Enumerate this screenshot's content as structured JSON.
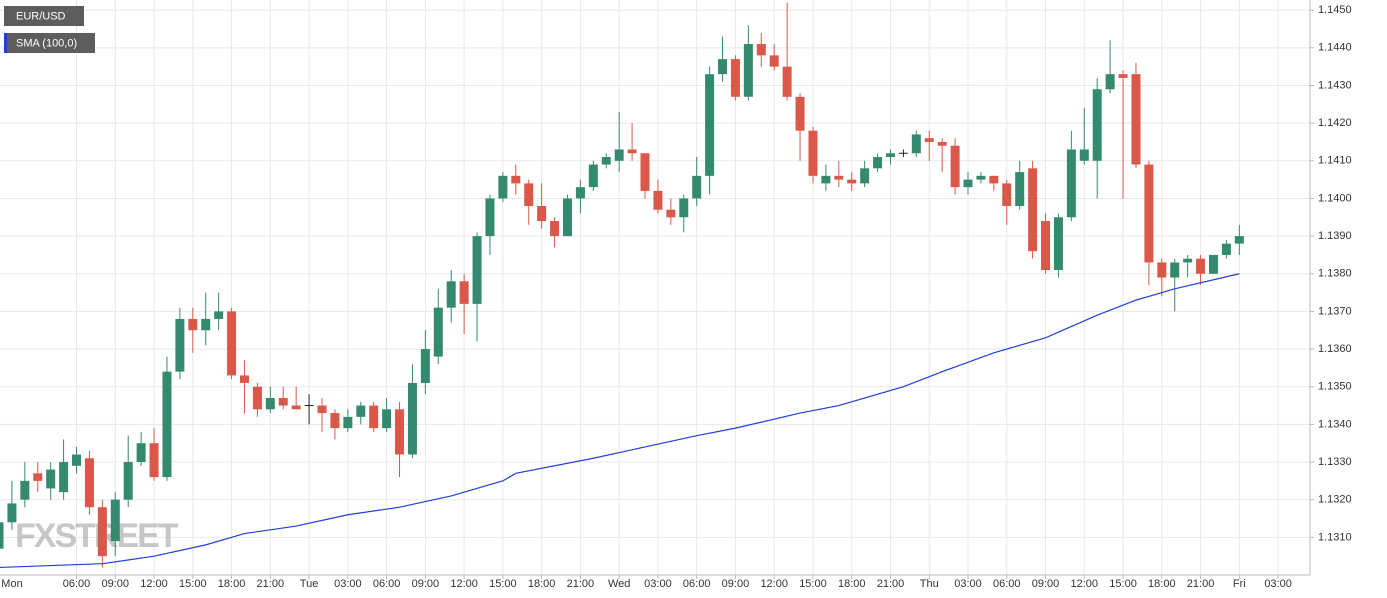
{
  "chart_data": {
    "type": "candlestick",
    "name": "EUR/USD",
    "watermark": "FXSTREET",
    "up_color": "#348a6f",
    "down_color": "#d9584a",
    "flat_color": "#222222",
    "x": [
      0,
      1,
      2,
      3,
      4,
      5,
      6,
      7,
      8,
      9,
      10,
      11,
      12,
      13,
      14,
      15,
      16,
      17,
      18,
      19,
      20,
      21,
      22,
      23,
      24,
      25,
      26,
      27,
      28,
      29,
      30,
      31,
      32,
      33,
      34,
      35,
      36,
      37,
      38,
      39,
      40,
      41,
      42,
      43,
      44,
      45,
      46,
      47,
      48,
      49,
      50,
      51,
      52,
      53,
      54,
      55,
      56,
      57,
      58,
      59,
      60,
      61,
      62,
      63,
      64,
      65,
      66,
      67,
      68,
      69,
      70,
      71,
      72,
      73,
      74,
      75,
      76,
      77,
      78,
      79,
      80,
      81,
      82,
      83,
      84,
      85,
      86,
      87,
      88,
      89,
      90,
      91,
      92,
      93,
      94,
      95,
      96
    ],
    "open": [
      1.1307,
      1.1314,
      1.132,
      1.1327,
      1.1323,
      1.1322,
      1.1329,
      1.1331,
      1.1318,
      1.1309,
      1.132,
      1.133,
      1.1335,
      1.1326,
      1.1354,
      1.1368,
      1.1365,
      1.1368,
      1.137,
      1.1353,
      1.135,
      1.1344,
      1.1347,
      1.1345,
      1.1345,
      1.1345,
      1.1343,
      1.1339,
      1.1342,
      1.1345,
      1.1339,
      1.1344,
      1.1332,
      1.1351,
      1.1358,
      1.1371,
      1.1378,
      1.1372,
      1.139,
      1.14,
      1.1406,
      1.1404,
      1.1398,
      1.1394,
      1.139,
      1.14,
      1.1403,
      1.1409,
      1.141,
      1.1413,
      1.1412,
      1.1402,
      1.1397,
      1.1395,
      1.14,
      1.1406,
      1.1433,
      1.1437,
      1.1427,
      1.1441,
      1.1438,
      1.1435,
      1.1427,
      1.1418,
      1.1404,
      1.1406,
      1.1405,
      1.1404,
      1.1408,
      1.1411,
      1.1412,
      1.1412,
      1.1416,
      1.1415,
      1.1414,
      1.1403,
      1.1405,
      1.1406,
      1.1404,
      1.1398,
      1.1408,
      1.1394,
      1.1381,
      1.1395,
      1.141,
      1.141,
      1.1429,
      1.1433,
      1.1433,
      1.1409,
      1.1383,
      1.1379,
      1.1383,
      1.1384,
      1.138,
      1.1385,
      1.1388
    ],
    "high": [
      1.1316,
      1.1325,
      1.133,
      1.133,
      1.133,
      1.1336,
      1.1334,
      1.1333,
      1.132,
      1.1322,
      1.1337,
      1.1338,
      1.1339,
      1.1358,
      1.1371,
      1.1371,
      1.1375,
      1.1375,
      1.1371,
      1.1357,
      1.1351,
      1.135,
      1.135,
      1.135,
      1.1348,
      1.1347,
      1.1344,
      1.1344,
      1.1346,
      1.1346,
      1.1347,
      1.1346,
      1.1356,
      1.1365,
      1.1376,
      1.1381,
      1.138,
      1.1391,
      1.1401,
      1.1407,
      1.1409,
      1.1405,
      1.1404,
      1.1395,
      1.1401,
      1.1405,
      1.141,
      1.1412,
      1.1423,
      1.142,
      1.1412,
      1.1405,
      1.14,
      1.1401,
      1.1411,
      1.1435,
      1.1443,
      1.1438,
      1.1446,
      1.1444,
      1.1441,
      1.1452,
      1.1428,
      1.1419,
      1.1409,
      1.141,
      1.1407,
      1.141,
      1.1412,
      1.1413,
      1.1413,
      1.1418,
      1.1418,
      1.1416,
      1.1416,
      1.1407,
      1.1407,
      1.1406,
      1.1405,
      1.141,
      1.141,
      1.1396,
      1.1396,
      1.1418,
      1.1424,
      1.1432,
      1.1442,
      1.1434,
      1.1436,
      1.141,
      1.1384,
      1.1384,
      1.1385,
      1.1385,
      1.1385,
      1.1389,
      1.1393
    ],
    "low": [
      1.1303,
      1.1312,
      1.1318,
      1.1322,
      1.132,
      1.132,
      1.1327,
      1.1316,
      1.1302,
      1.1305,
      1.1318,
      1.1329,
      1.1325,
      1.1325,
      1.1352,
      1.1359,
      1.1361,
      1.1365,
      1.1352,
      1.1343,
      1.1342,
      1.1343,
      1.1344,
      1.1344,
      1.134,
      1.1338,
      1.1336,
      1.1338,
      1.134,
      1.1338,
      1.1338,
      1.1326,
      1.1331,
      1.1348,
      1.1356,
      1.1367,
      1.1364,
      1.1362,
      1.1385,
      1.1399,
      1.1401,
      1.1393,
      1.1392,
      1.1387,
      1.139,
      1.1396,
      1.1402,
      1.1408,
      1.1407,
      1.141,
      1.14,
      1.1396,
      1.1393,
      1.1391,
      1.1398,
      1.1401,
      1.1431,
      1.1426,
      1.1426,
      1.1435,
      1.1434,
      1.1426,
      1.141,
      1.1404,
      1.1402,
      1.1403,
      1.1402,
      1.1403,
      1.1407,
      1.1409,
      1.1411,
      1.1411,
      1.141,
      1.1407,
      1.1401,
      1.1401,
      1.1404,
      1.1402,
      1.1393,
      1.1397,
      1.1384,
      1.138,
      1.1379,
      1.1394,
      1.1409,
      1.14,
      1.1428,
      1.14,
      1.1408,
      1.1377,
      1.1374,
      1.137,
      1.1379,
      1.1377,
      1.138,
      1.1384,
      1.1385
    ],
    "close": [
      1.1314,
      1.1319,
      1.1325,
      1.1325,
      1.1328,
      1.133,
      1.1332,
      1.1318,
      1.1305,
      1.132,
      1.133,
      1.1335,
      1.1326,
      1.1354,
      1.1368,
      1.1365,
      1.1368,
      1.137,
      1.1353,
      1.1351,
      1.1344,
      1.1347,
      1.1345,
      1.1344,
      1.1345,
      1.1343,
      1.1339,
      1.1342,
      1.1345,
      1.1339,
      1.1344,
      1.1332,
      1.1351,
      1.136,
      1.1371,
      1.1378,
      1.1372,
      1.139,
      1.14,
      1.1406,
      1.1404,
      1.1398,
      1.1394,
      1.139,
      1.14,
      1.1403,
      1.1409,
      1.1411,
      1.1413,
      1.1412,
      1.1402,
      1.1397,
      1.1395,
      1.14,
      1.1406,
      1.1433,
      1.1437,
      1.1427,
      1.1441,
      1.1438,
      1.1435,
      1.1427,
      1.1418,
      1.1406,
      1.1406,
      1.1405,
      1.1404,
      1.1408,
      1.1411,
      1.1412,
      1.1412,
      1.1417,
      1.1415,
      1.1414,
      1.1403,
      1.1405,
      1.1406,
      1.1404,
      1.1398,
      1.1407,
      1.1386,
      1.1381,
      1.1395,
      1.1413,
      1.1413,
      1.1429,
      1.1433,
      1.1432,
      1.1409,
      1.1383,
      1.1379,
      1.1383,
      1.1384,
      1.138,
      1.1385,
      1.1388,
      1.139
    ],
    "overlays": [
      {
        "type": "line",
        "name": "SMA (100,0)",
        "color": "#1f3fd6",
        "x": [
          0,
          8,
          12,
          16,
          19,
          23,
          27,
          31,
          35,
          39,
          40,
          46,
          50,
          54,
          57,
          62,
          65,
          70,
          73,
          77,
          81,
          85,
          88,
          91,
          96
        ],
        "values": [
          1.1302,
          1.1303,
          1.1305,
          1.1308,
          1.1311,
          1.1313,
          1.1316,
          1.1318,
          1.1321,
          1.1325,
          1.1327,
          1.1331,
          1.1334,
          1.1337,
          1.1339,
          1.1343,
          1.1345,
          1.135,
          1.1354,
          1.1359,
          1.1363,
          1.1369,
          1.1373,
          1.1376,
          1.138
        ]
      }
    ],
    "xlim": [
      0.077,
      101.47
    ],
    "xticks": [
      {
        "value": 0,
        "label": "Mon"
      },
      {
        "value": 6,
        "label": "06:00"
      },
      {
        "value": 9,
        "label": "09:00"
      },
      {
        "value": 12,
        "label": "12:00"
      },
      {
        "value": 15,
        "label": "15:00"
      },
      {
        "value": 18,
        "label": "18:00"
      },
      {
        "value": 21,
        "label": "21:00"
      },
      {
        "value": 24,
        "label": "Tue"
      },
      {
        "value": 27,
        "label": "03:00"
      },
      {
        "value": 30,
        "label": "06:00"
      },
      {
        "value": 33,
        "label": "09:00"
      },
      {
        "value": 36,
        "label": "12:00"
      },
      {
        "value": 39,
        "label": "15:00"
      },
      {
        "value": 42,
        "label": "18:00"
      },
      {
        "value": 45,
        "label": "21:00"
      },
      {
        "value": 48,
        "label": "Wed"
      },
      {
        "value": 51,
        "label": "03:00"
      },
      {
        "value": 54,
        "label": "06:00"
      },
      {
        "value": 57,
        "label": "09:00"
      },
      {
        "value": 60,
        "label": "12:00"
      },
      {
        "value": 63,
        "label": "15:00"
      },
      {
        "value": 66,
        "label": "18:00"
      },
      {
        "value": 69,
        "label": "21:00"
      },
      {
        "value": 72,
        "label": "Thu"
      },
      {
        "value": 75,
        "label": "03:00"
      },
      {
        "value": 78,
        "label": "06:00"
      },
      {
        "value": 81,
        "label": "09:00"
      },
      {
        "value": 84,
        "label": "12:00"
      },
      {
        "value": 87,
        "label": "15:00"
      },
      {
        "value": 90,
        "label": "18:00"
      },
      {
        "value": 93,
        "label": "21:00"
      },
      {
        "value": 96,
        "label": "Fri"
      },
      {
        "value": 99,
        "label": "03:00"
      }
    ],
    "ylim": [
      1.13,
      1.14527
    ],
    "yticks": [
      {
        "value": 1.131,
        "label": "1.1310"
      },
      {
        "value": 1.132,
        "label": "1.1320"
      },
      {
        "value": 1.133,
        "label": "1.1330"
      },
      {
        "value": 1.134,
        "label": "1.1340"
      },
      {
        "value": 1.135,
        "label": "1.1350"
      },
      {
        "value": 1.136,
        "label": "1.1360"
      },
      {
        "value": 1.137,
        "label": "1.1370"
      },
      {
        "value": 1.138,
        "label": "1.1380"
      },
      {
        "value": 1.139,
        "label": "1.1390"
      },
      {
        "value": 1.14,
        "label": "1.1400"
      },
      {
        "value": 1.141,
        "label": "1.1410"
      },
      {
        "value": 1.142,
        "label": "1.1420"
      },
      {
        "value": 1.143,
        "label": "1.1430"
      },
      {
        "value": 1.144,
        "label": "1.1440"
      },
      {
        "value": 1.145,
        "label": "1.1450"
      }
    ],
    "grid": true
  }
}
